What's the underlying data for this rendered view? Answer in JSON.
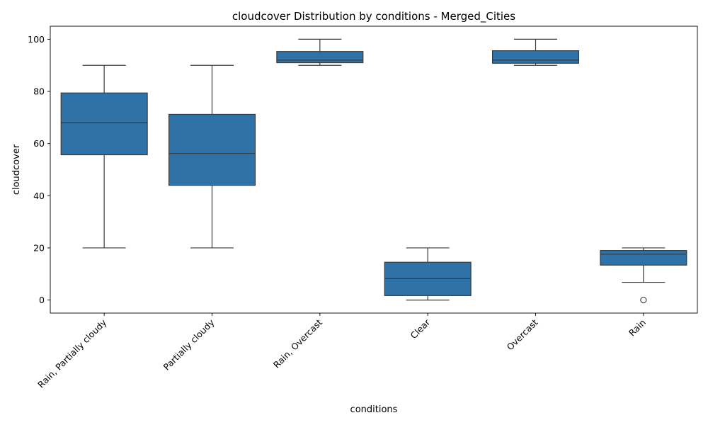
{
  "chart_data": {
    "type": "box",
    "title": "cloudcover Distribution by conditions - Merged_Cities",
    "xlabel": "conditions",
    "ylabel": "cloudcover",
    "ylim": [
      -5,
      105
    ],
    "yticks": [
      0,
      20,
      40,
      60,
      80,
      100
    ],
    "grid": false,
    "box_color": "#2e72a8",
    "line_color": "#3a3a3a",
    "categories": [
      "Rain, Partially cloudy",
      "Partially cloudy",
      "Rain, Overcast",
      "Clear",
      "Overcast",
      "Rain"
    ],
    "boxes": [
      {
        "category": "Rain, Partially cloudy",
        "whisker_low": 20,
        "q1": 55.7,
        "median": 68,
        "q3": 79.4,
        "whisker_high": 90,
        "outliers": []
      },
      {
        "category": "Partially cloudy",
        "whisker_low": 20,
        "q1": 44,
        "median": 56.2,
        "q3": 71.2,
        "whisker_high": 90,
        "outliers": []
      },
      {
        "category": "Rain, Overcast",
        "whisker_low": 90,
        "q1": 91,
        "median": 92,
        "q3": 95.3,
        "whisker_high": 100,
        "outliers": []
      },
      {
        "category": "Clear",
        "whisker_low": 0,
        "q1": 1.7,
        "median": 8.2,
        "q3": 14.5,
        "whisker_high": 20,
        "outliers": []
      },
      {
        "category": "Overcast",
        "whisker_low": 90,
        "q1": 90.8,
        "median": 92,
        "q3": 95.6,
        "whisker_high": 100,
        "outliers": []
      },
      {
        "category": "Rain",
        "whisker_low": 6.8,
        "q1": 13.4,
        "median": 17.6,
        "q3": 19,
        "whisker_high": 20,
        "outliers": [
          0
        ]
      }
    ]
  }
}
